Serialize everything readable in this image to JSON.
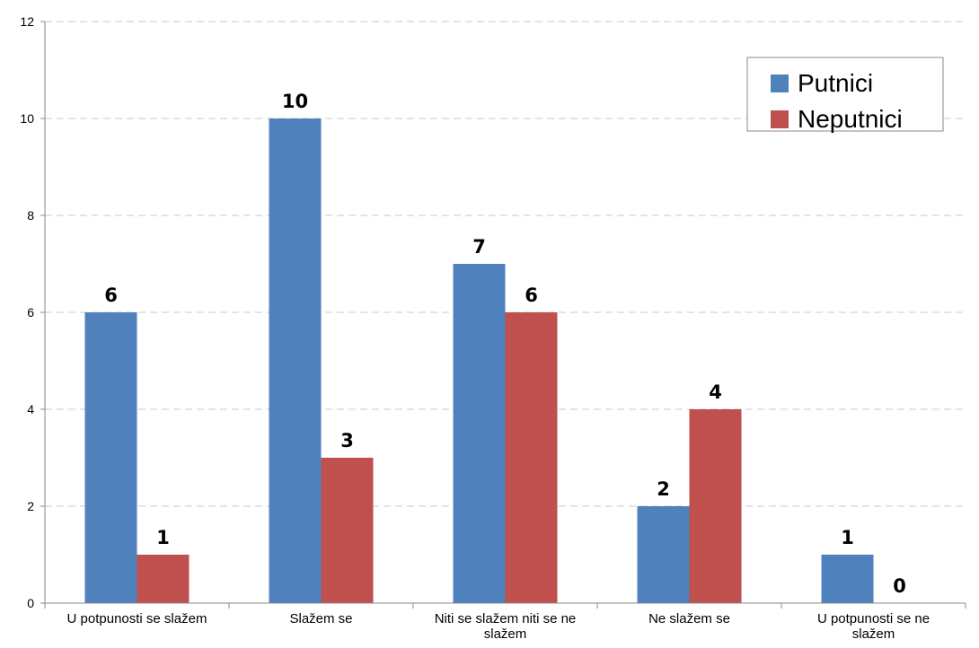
{
  "chart_data": {
    "type": "bar",
    "categories": [
      [
        "U potpunosti se slažem"
      ],
      [
        "Slažem se"
      ],
      [
        "Niti se slažem niti se ne",
        "slažem"
      ],
      [
        "Ne slažem se"
      ],
      [
        "U potpunosti se ne",
        "slažem"
      ]
    ],
    "series": [
      {
        "name": "Putnici",
        "color": "#4f81bd",
        "values": [
          6,
          10,
          7,
          2,
          1
        ]
      },
      {
        "name": "Neputnici",
        "color": "#c0504d",
        "values": [
          1,
          3,
          6,
          4,
          0
        ]
      }
    ],
    "ylim": [
      0,
      12
    ],
    "yticks": [
      0,
      2,
      4,
      6,
      8,
      10,
      12
    ],
    "grid": true,
    "legend_position": "top-right",
    "data_labels": true
  }
}
